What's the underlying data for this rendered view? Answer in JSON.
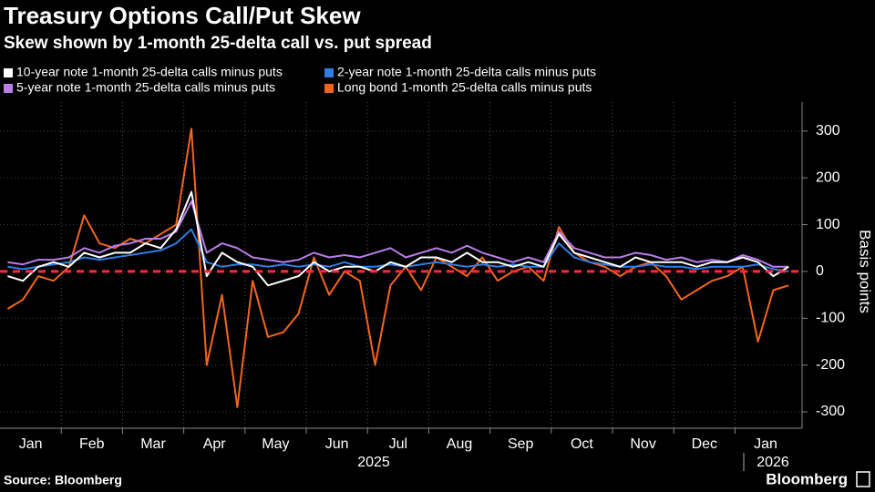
{
  "chart_data": {
    "type": "line",
    "title": "Treasury Options Call/Put Skew",
    "subtitle": "Skew shown by 1-month 25-delta call vs. put spread",
    "y_label": "Basis points",
    "source": "Source: Bloomberg",
    "brand": "Bloomberg",
    "years": [
      "2025",
      "2026"
    ],
    "categories": [
      "Jan",
      null,
      null,
      null,
      "Feb",
      null,
      null,
      null,
      "Mar",
      null,
      null,
      null,
      "Apr",
      null,
      null,
      null,
      "May",
      null,
      null,
      null,
      "Jun",
      null,
      null,
      null,
      "Jul",
      null,
      null,
      null,
      "Aug",
      null,
      null,
      null,
      "Sep",
      null,
      null,
      null,
      "Oct",
      null,
      null,
      null,
      "Nov",
      null,
      null,
      null,
      "Dec",
      null,
      null,
      null,
      "Jan",
      null,
      null,
      null
    ],
    "series": [
      {
        "name": "10-year note 1-month 25-delta calls minus puts",
        "color": "#ffffff",
        "values": [
          -10,
          -20,
          10,
          20,
          10,
          40,
          30,
          40,
          40,
          60,
          50,
          90,
          170,
          -10,
          40,
          20,
          10,
          -30,
          -20,
          -10,
          20,
          0,
          10,
          10,
          0,
          20,
          10,
          30,
          30,
          20,
          40,
          20,
          20,
          10,
          20,
          10,
          80,
          40,
          30,
          20,
          10,
          30,
          20,
          20,
          20,
          10,
          20,
          20,
          30,
          20,
          -10,
          10
        ]
      },
      {
        "name": "2-year note 1-month 25-delta calls minus puts",
        "color": "#2e7de0",
        "values": [
          10,
          5,
          10,
          15,
          20,
          30,
          25,
          30,
          35,
          40,
          45,
          60,
          90,
          20,
          10,
          15,
          15,
          10,
          15,
          10,
          15,
          10,
          20,
          10,
          10,
          15,
          10,
          15,
          20,
          15,
          10,
          15,
          10,
          15,
          10,
          10,
          60,
          30,
          20,
          15,
          10,
          10,
          15,
          10,
          10,
          5,
          10,
          10,
          10,
          15,
          5,
          0
        ]
      },
      {
        "name": "5-year note 1-month 25-delta calls minus puts",
        "color": "#b87ee8",
        "values": [
          20,
          15,
          25,
          25,
          30,
          50,
          40,
          55,
          60,
          70,
          70,
          85,
          150,
          40,
          60,
          50,
          30,
          25,
          20,
          25,
          40,
          30,
          35,
          30,
          40,
          50,
          30,
          40,
          50,
          40,
          55,
          40,
          30,
          20,
          30,
          20,
          85,
          50,
          40,
          30,
          30,
          40,
          35,
          25,
          30,
          20,
          25,
          20,
          35,
          25,
          10,
          10
        ]
      },
      {
        "name": "Long bond 1-month 25-delta calls minus puts",
        "color": "#f2661c",
        "values": [
          -80,
          -60,
          -10,
          -20,
          10,
          120,
          60,
          50,
          70,
          60,
          80,
          100,
          305,
          -200,
          -50,
          -290,
          -20,
          -140,
          -130,
          -90,
          30,
          -50,
          0,
          -20,
          -200,
          -30,
          10,
          -40,
          30,
          10,
          -10,
          30,
          -20,
          0,
          10,
          -20,
          95,
          40,
          20,
          10,
          -10,
          10,
          20,
          -10,
          -60,
          -40,
          -20,
          -10,
          10,
          -150,
          -40,
          -30
        ]
      }
    ],
    "ylim": [
      -335,
      362
    ],
    "yticks": [
      -300,
      -200,
      -100,
      0,
      100,
      200,
      300
    ],
    "grid": true
  }
}
